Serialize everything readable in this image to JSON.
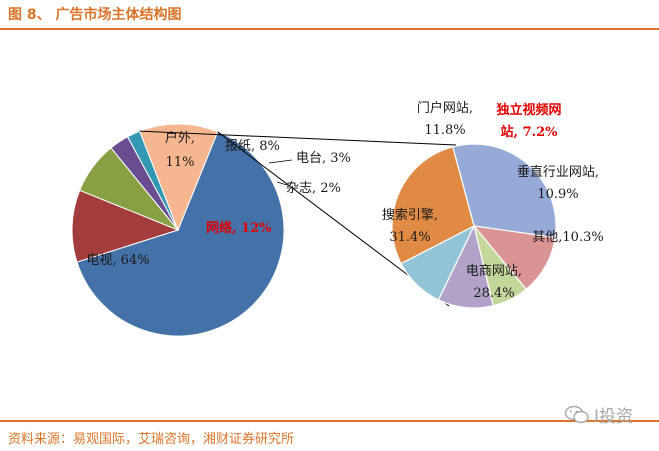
{
  "figure": {
    "title": "图 8、 广告市场主体结构图",
    "source": "资料来源：易观国际，艾瑞咨询，湘财证券研究所",
    "watermark": "I投资"
  },
  "chart_data": [
    {
      "type": "pie",
      "slices": [
        {
          "name": "电视",
          "value": 64,
          "label": "电视, 64%",
          "color": "#4472a8"
        },
        {
          "name": "户外",
          "value": 11,
          "label": "户外, 11%",
          "color": "#a33c3c"
        },
        {
          "name": "报纸",
          "value": 8,
          "label": "报纸, 8%",
          "color": "#86a043"
        },
        {
          "name": "电台",
          "value": 3,
          "label": "电台, 3%",
          "color": "#6a4c90"
        },
        {
          "name": "杂志",
          "value": 2,
          "label": "杂志, 2%",
          "color": "#3497b4"
        },
        {
          "name": "网络",
          "value": 12,
          "label": "网络, 12%",
          "color": "#f6b690",
          "highlight": true
        }
      ]
    },
    {
      "type": "pie",
      "slices": [
        {
          "name": "搜索引擎",
          "value": 31.4,
          "label_lines": [
            "搜索引擎,",
            "31.4%"
          ],
          "color": "#95aad6"
        },
        {
          "name": "门户网站",
          "value": 11.8,
          "label_lines": [
            "门户网站,",
            "11.8%"
          ],
          "color": "#d99493"
        },
        {
          "name": "独立视频网站",
          "value": 7.2,
          "label_lines": [
            "独立视频网",
            "站, 7.2%"
          ],
          "color": "#c4d79b",
          "highlight": true
        },
        {
          "name": "垂直行业网站",
          "value": 10.9,
          "label_lines": [
            "垂直行业网站,",
            "10.9%"
          ],
          "color": "#b2a2c8"
        },
        {
          "name": "其他",
          "value": 10.3,
          "label_lines": [
            "其他,10.3%"
          ],
          "color": "#92c4d6"
        },
        {
          "name": "电商网站",
          "value": 28.4,
          "label_lines": [
            "电商网站,",
            "28.4%"
          ],
          "color": "#e08a44"
        }
      ]
    }
  ]
}
